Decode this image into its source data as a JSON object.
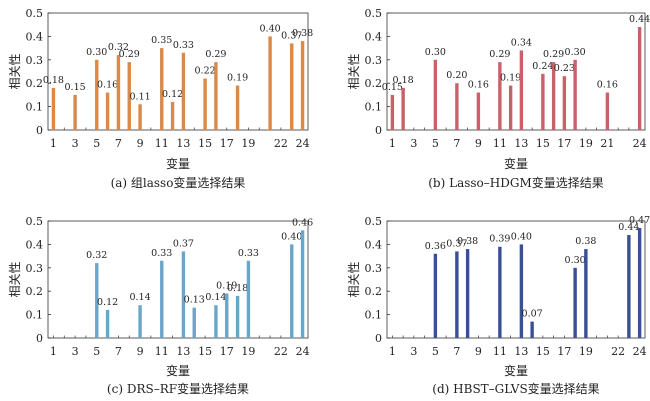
{
  "chart_data": [
    {
      "type": "bar",
      "caption": "(a) 组lasso变量选择结果",
      "xlabel": "变量",
      "ylabel": "相关性",
      "ylim": [
        0,
        0.5
      ],
      "yticks": [
        "0",
        "0.1",
        "0.2",
        "0.3",
        "0.4",
        "0.5"
      ],
      "xticks": [
        "1",
        "3",
        "5",
        "7",
        "9",
        "11",
        "13",
        "15",
        "17",
        "19",
        "22",
        "24"
      ],
      "color": "#d9894a",
      "bars": [
        {
          "x": 1,
          "value": 0.18,
          "label": "0.18"
        },
        {
          "x": 3,
          "value": 0.15,
          "label": "0.15"
        },
        {
          "x": 5,
          "value": 0.3,
          "label": "0.30"
        },
        {
          "x": 6,
          "value": 0.16,
          "label": "0.16"
        },
        {
          "x": 7,
          "value": 0.32,
          "label": "0.32"
        },
        {
          "x": 8,
          "value": 0.29,
          "label": "0.29"
        },
        {
          "x": 9,
          "value": 0.11,
          "label": "0.11"
        },
        {
          "x": 11,
          "value": 0.35,
          "label": "0.35"
        },
        {
          "x": 12,
          "value": 0.12,
          "label": "0.12"
        },
        {
          "x": 13,
          "value": 0.33,
          "label": "0.33"
        },
        {
          "x": 15,
          "value": 0.22,
          "label": "0.22"
        },
        {
          "x": 16,
          "value": 0.29,
          "label": "0.29"
        },
        {
          "x": 18,
          "value": 0.19,
          "label": "0.19"
        },
        {
          "x": 21,
          "value": 0.4,
          "label": "0.40"
        },
        {
          "x": 23,
          "value": 0.37,
          "label": "0.37"
        },
        {
          "x": 24,
          "value": 0.38,
          "label": "0.38"
        }
      ]
    },
    {
      "type": "bar",
      "caption": "(b) Lasso–HDGM变量选择结果",
      "xlabel": "变量",
      "ylabel": "相关性",
      "ylim": [
        0,
        0.5
      ],
      "yticks": [
        "0",
        "0.1",
        "0.2",
        "0.3",
        "0.4",
        "0.5"
      ],
      "xticks": [
        "1",
        "3",
        "5",
        "7",
        "9",
        "11",
        "13",
        "15",
        "17",
        "19",
        "21",
        "24"
      ],
      "color": "#c9616b",
      "bars": [
        {
          "x": 1,
          "value": 0.15,
          "label": "0.15"
        },
        {
          "x": 2,
          "value": 0.18,
          "label": "0.18"
        },
        {
          "x": 5,
          "value": 0.3,
          "label": "0.30"
        },
        {
          "x": 7,
          "value": 0.2,
          "label": "0.20"
        },
        {
          "x": 9,
          "value": 0.16,
          "label": "0.16"
        },
        {
          "x": 11,
          "value": 0.29,
          "label": "0.29"
        },
        {
          "x": 12,
          "value": 0.19,
          "label": "0.19"
        },
        {
          "x": 13,
          "value": 0.34,
          "label": "0.34"
        },
        {
          "x": 15,
          "value": 0.24,
          "label": "0.24"
        },
        {
          "x": 16,
          "value": 0.29,
          "label": "0.29"
        },
        {
          "x": 17,
          "value": 0.23,
          "label": "0.23"
        },
        {
          "x": 18,
          "value": 0.3,
          "label": "0.30"
        },
        {
          "x": 21,
          "value": 0.16,
          "label": "0.16"
        },
        {
          "x": 24,
          "value": 0.44,
          "label": "0.44"
        }
      ]
    },
    {
      "type": "bar",
      "caption": "(c) DRS–RF变量选择结果",
      "xlabel": "变量",
      "ylabel": "相关性",
      "ylim": [
        0,
        0.5
      ],
      "yticks": [
        "0",
        "0.1",
        "0.2",
        "0.3",
        "0.4",
        "0.5"
      ],
      "xticks": [
        "1",
        "3",
        "5",
        "7",
        "9",
        "11",
        "13",
        "15",
        "17",
        "19",
        "22",
        "24"
      ],
      "color": "#6aa6c9",
      "bars": [
        {
          "x": 5,
          "value": 0.32,
          "label": "0.32"
        },
        {
          "x": 6,
          "value": 0.12,
          "label": "0.12"
        },
        {
          "x": 9,
          "value": 0.14,
          "label": "0.14"
        },
        {
          "x": 11,
          "value": 0.33,
          "label": "0.33"
        },
        {
          "x": 13,
          "value": 0.37,
          "label": "0.37"
        },
        {
          "x": 14,
          "value": 0.13,
          "label": "0.13"
        },
        {
          "x": 16,
          "value": 0.14,
          "label": "0.14"
        },
        {
          "x": 17,
          "value": 0.19,
          "label": "0.19"
        },
        {
          "x": 18,
          "value": 0.18,
          "label": "0.18"
        },
        {
          "x": 19,
          "value": 0.33,
          "label": "0.33"
        },
        {
          "x": 23,
          "value": 0.4,
          "label": "0.40"
        },
        {
          "x": 24,
          "value": 0.46,
          "label": "0.46"
        }
      ]
    },
    {
      "type": "bar",
      "caption": "(d) HBST–GLVS变量选择结果",
      "xlabel": "变量",
      "ylabel": "相关性",
      "ylim": [
        0,
        0.5
      ],
      "yticks": [
        "0",
        "0.1",
        "0.2",
        "0.3",
        "0.4",
        "0.5"
      ],
      "xticks": [
        "1",
        "3",
        "5",
        "7",
        "9",
        "11",
        "13",
        "15",
        "17",
        "19",
        "22",
        "24"
      ],
      "color": "#3b4f94",
      "bars": [
        {
          "x": 5,
          "value": 0.36,
          "label": "0.36"
        },
        {
          "x": 7,
          "value": 0.37,
          "label": "0.37"
        },
        {
          "x": 8,
          "value": 0.38,
          "label": "0.38"
        },
        {
          "x": 11,
          "value": 0.39,
          "label": "0.39"
        },
        {
          "x": 13,
          "value": 0.4,
          "label": "0.40"
        },
        {
          "x": 14,
          "value": 0.07,
          "label": "0.07"
        },
        {
          "x": 18,
          "value": 0.3,
          "label": "0.30"
        },
        {
          "x": 19,
          "value": 0.38,
          "label": "0.38"
        },
        {
          "x": 23,
          "value": 0.44,
          "label": "0.44"
        },
        {
          "x": 24,
          "value": 0.47,
          "label": "0.47"
        }
      ]
    }
  ]
}
